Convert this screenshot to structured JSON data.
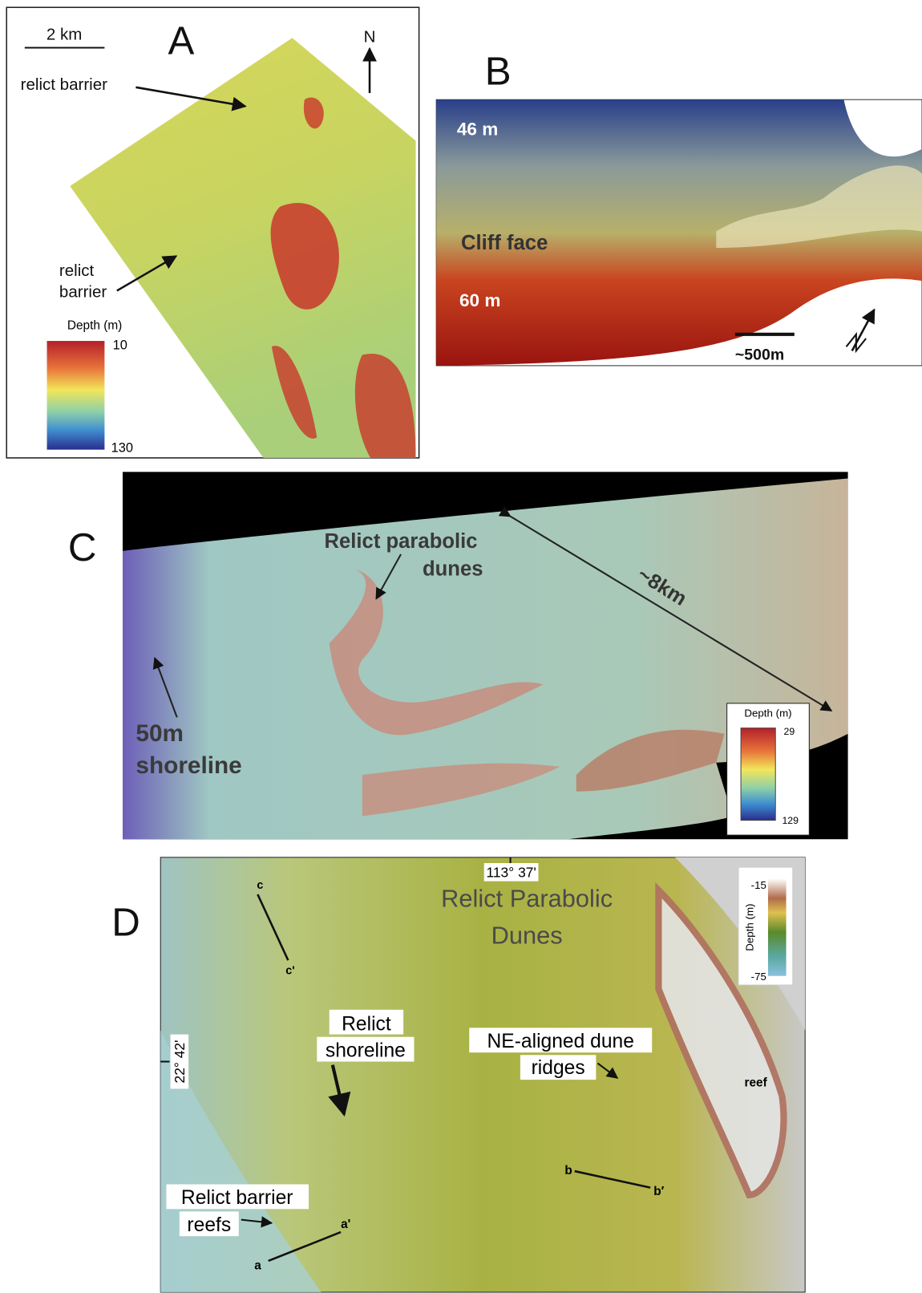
{
  "panels": {
    "A": {
      "label": "A",
      "scale": "2 km",
      "north": "N",
      "annotations": [
        "relict barrier",
        "relict",
        "barrier"
      ],
      "legend": {
        "title": "Depth (m)",
        "top": 10,
        "bottom": 130
      }
    },
    "B": {
      "label": "B",
      "depth_top": "46 m",
      "annotation": "Cliff face",
      "depth_bottom": "60 m",
      "scale": "~500m"
    },
    "C": {
      "label": "C",
      "annotations": [
        "Relict parabolic",
        "dunes",
        "~8km",
        "50m",
        "shoreline"
      ],
      "legend": {
        "title": "Depth (m)",
        "top": 29,
        "bottom": 129
      }
    },
    "D": {
      "label": "D",
      "longitude": "113° 37'",
      "title": [
        "Relict Parabolic",
        "Dunes"
      ],
      "latitude": "22° 42'",
      "annotations": [
        "c",
        "c'",
        "Relict",
        "shoreline",
        "NE-aligned dune",
        "ridges",
        "reef",
        "b",
        "b′",
        "Relict barrier",
        "reefs",
        "a'",
        "a"
      ],
      "legend": {
        "title": "Depth (m)",
        "top": -15,
        "bottom": -75
      }
    }
  }
}
